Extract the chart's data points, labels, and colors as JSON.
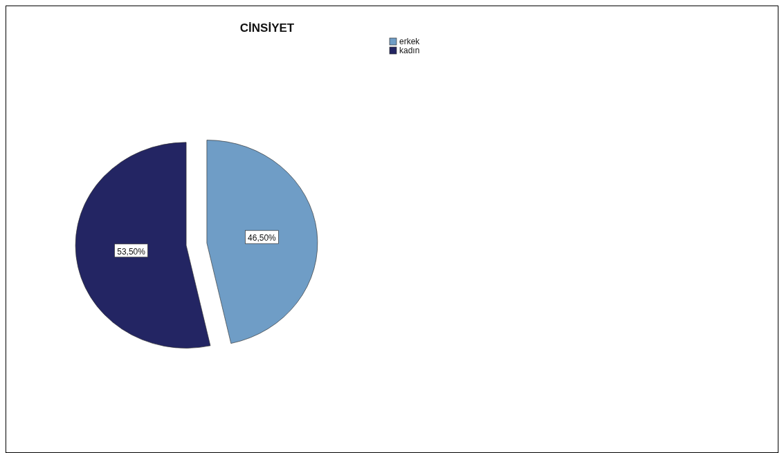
{
  "chart_data": {
    "type": "pie",
    "title": "CİNSİYET",
    "categories": [
      "erkek",
      "kadın"
    ],
    "values": [
      46.5,
      53.5
    ],
    "colors": [
      "#6f9dc6",
      "#232563"
    ],
    "value_labels": [
      "46,50%",
      "53,50%"
    ],
    "legend": "top"
  }
}
